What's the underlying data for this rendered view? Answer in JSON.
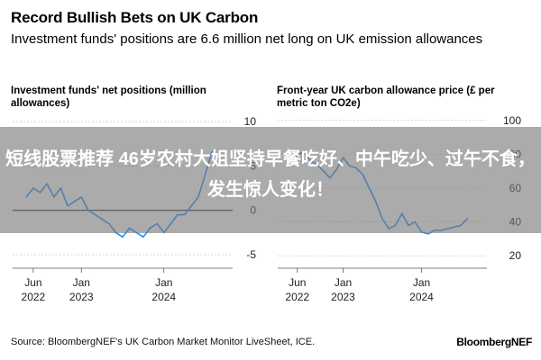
{
  "header": {
    "title": "Record Bullish Bets on UK Carbon",
    "subtitle": "Investment funds' positions are 6.6 million net long on UK emission allowances"
  },
  "overlay": {
    "headline": "短线股票推荐 46岁农村大姐坚持早餐吃好、中午吃少、过午不食，发生惊人变化！"
  },
  "footer": {
    "source": "Source: BloombergNEF's UK Carbon Market Monitor LiveSheet, ICE.",
    "brand": "BloombergNEF"
  },
  "colors": {
    "line": "#1f8fff",
    "zero_line": "#000000",
    "grid": "#cccccc"
  },
  "chart_data": [
    {
      "type": "line",
      "title": "Investment funds' net positions (million allowances)",
      "xlabel": "",
      "ylabel": "",
      "y_tick_labels": [
        "10",
        "5",
        "0",
        "-5"
      ],
      "ylim": [
        -5.5,
        10.5
      ],
      "x_ticks": [
        {
          "line1": "Jun",
          "line2": "2022"
        },
        {
          "line1": "Jan",
          "line2": "2023"
        },
        {
          "line1": "Jan",
          "line2": "2024"
        }
      ],
      "series": [
        {
          "x": [
            "2022-05",
            "2022-06",
            "2022-07",
            "2022-08",
            "2022-09",
            "2022-10",
            "2022-11",
            "2022-12",
            "2023-01",
            "2023-02",
            "2023-03",
            "2023-04",
            "2023-05",
            "2023-06",
            "2023-07",
            "2023-08",
            "2023-09",
            "2023-10",
            "2023-11",
            "2023-12",
            "2024-01",
            "2024-02",
            "2024-03",
            "2024-04",
            "2024-05",
            "2024-06",
            "2024-07",
            "2024-08"
          ],
          "values": [
            1.5,
            2.5,
            2.0,
            3.0,
            1.5,
            2.5,
            0.5,
            1.0,
            1.5,
            0.0,
            -0.5,
            -1.0,
            -1.5,
            -2.5,
            -3.0,
            -2.0,
            -2.5,
            -3.0,
            -2.0,
            -1.5,
            -2.5,
            -1.5,
            -0.5,
            -0.5,
            0.5,
            1.5,
            4.0,
            6.6
          ]
        }
      ],
      "grid": true
    },
    {
      "type": "line",
      "title": "Front-year UK carbon allowance price (£ per metric ton CO2e)",
      "xlabel": "",
      "ylabel": "",
      "y_tick_labels": [
        "100",
        "80",
        "60",
        "40",
        "20"
      ],
      "ylim": [
        18,
        102
      ],
      "x_ticks": [
        {
          "line1": "Jun",
          "line2": "2022"
        },
        {
          "line1": "Jan",
          "line2": "2023"
        },
        {
          "line1": "Jan",
          "line2": "2024"
        }
      ],
      "series": [
        {
          "x": [
            "2022-05",
            "2022-06",
            "2022-07",
            "2022-08",
            "2022-09",
            "2022-10",
            "2022-11",
            "2022-12",
            "2023-01",
            "2023-02",
            "2023-03",
            "2023-04",
            "2023-05",
            "2023-06",
            "2023-07",
            "2023-08",
            "2023-09",
            "2023-10",
            "2023-11",
            "2023-12",
            "2024-01",
            "2024-02",
            "2024-03",
            "2024-04",
            "2024-05",
            "2024-06",
            "2024-07",
            "2024-08"
          ],
          "values": [
            75,
            79,
            82,
            76,
            74,
            70,
            66,
            71,
            78,
            73,
            72,
            68,
            60,
            52,
            42,
            36,
            38,
            45,
            38,
            40,
            34,
            33,
            35,
            35,
            36,
            37,
            38,
            42
          ]
        }
      ],
      "grid": true
    }
  ]
}
